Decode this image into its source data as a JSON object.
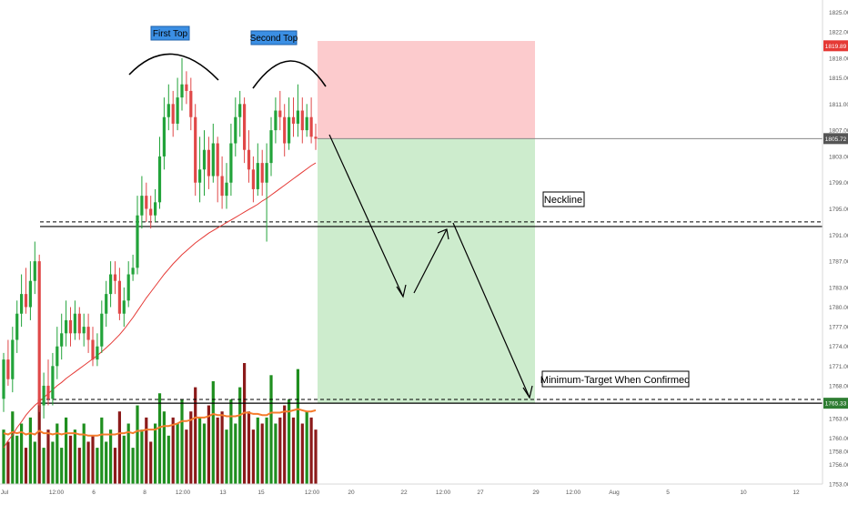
{
  "chart_data": {
    "type": "candlestick",
    "title": "",
    "xlabel": "",
    "ylabel": "",
    "ylim": [
      1751.6,
      1826.6
    ],
    "grid": false,
    "y_ticks": [
      "1825.00",
      "1822.00",
      "1818.00",
      "1815.00",
      "1811.00",
      "1807.00",
      "1803.00",
      "1799.00",
      "1795.00",
      "1791.00",
      "1787.00",
      "1783.00",
      "1780.00",
      "1777.00",
      "1774.00",
      "1771.00",
      "1768.00",
      "1763.00",
      "1760.00",
      "1758.00",
      "1756.00",
      "1753.00"
    ],
    "x_ticks": [
      "Jul",
      "12:00",
      "6",
      "8",
      "12:00",
      "13",
      "15",
      "12:00",
      "20",
      "22",
      "12:00",
      "27",
      "29",
      "12:00",
      "Aug",
      "5",
      "10",
      "12"
    ],
    "price_badges": [
      {
        "label": "1819.89",
        "value": 1819.89,
        "color": "#e53935"
      },
      {
        "label": "1805.72",
        "value": 1805.72,
        "color": "#555555"
      },
      {
        "label": "1765.33",
        "value": 1765.33,
        "color": "#2e7d32"
      }
    ],
    "annotations": {
      "first_top": "First Top",
      "second_top": "Second Top",
      "neckline": "Neckline",
      "target": "Minimum-Target When Confirmed"
    },
    "levels": {
      "neckline_solid": 1792.3,
      "neckline_dashed": 1793.0,
      "target_solid": 1765.33,
      "target_dashed": 1765.9,
      "stop": 1819.89,
      "entry": 1805.72
    },
    "candles": [
      {
        "o": 1766,
        "c": 1772,
        "h": 1773,
        "l": 1764
      },
      {
        "o": 1772,
        "c": 1769,
        "h": 1775,
        "l": 1768
      },
      {
        "o": 1769,
        "c": 1775,
        "h": 1777,
        "l": 1767
      },
      {
        "o": 1775,
        "c": 1779,
        "h": 1781,
        "l": 1773
      },
      {
        "o": 1779,
        "c": 1782,
        "h": 1785,
        "l": 1777
      },
      {
        "o": 1782,
        "c": 1780,
        "h": 1786,
        "l": 1779
      },
      {
        "o": 1780,
        "c": 1784,
        "h": 1787,
        "l": 1778
      },
      {
        "o": 1784,
        "c": 1787,
        "h": 1790,
        "l": 1782
      },
      {
        "o": 1787,
        "c": 1765,
        "h": 1788,
        "l": 1764
      },
      {
        "o": 1765,
        "c": 1768,
        "h": 1770,
        "l": 1763
      },
      {
        "o": 1768,
        "c": 1766,
        "h": 1772,
        "l": 1765
      },
      {
        "o": 1766,
        "c": 1771,
        "h": 1773,
        "l": 1765
      },
      {
        "o": 1771,
        "c": 1774,
        "h": 1777,
        "l": 1769
      },
      {
        "o": 1774,
        "c": 1776,
        "h": 1779,
        "l": 1772
      },
      {
        "o": 1776,
        "c": 1778,
        "h": 1781,
        "l": 1774
      },
      {
        "o": 1778,
        "c": 1776,
        "h": 1780,
        "l": 1774
      },
      {
        "o": 1776,
        "c": 1779,
        "h": 1781,
        "l": 1775
      },
      {
        "o": 1779,
        "c": 1776,
        "h": 1780,
        "l": 1775
      },
      {
        "o": 1776,
        "c": 1777,
        "h": 1779,
        "l": 1774
      },
      {
        "o": 1777,
        "c": 1775,
        "h": 1779,
        "l": 1773
      },
      {
        "o": 1775,
        "c": 1772,
        "h": 1777,
        "l": 1771
      },
      {
        "o": 1772,
        "c": 1774,
        "h": 1776,
        "l": 1771
      },
      {
        "o": 1774,
        "c": 1779,
        "h": 1781,
        "l": 1773
      },
      {
        "o": 1779,
        "c": 1782,
        "h": 1784,
        "l": 1777
      },
      {
        "o": 1782,
        "c": 1785,
        "h": 1787,
        "l": 1780
      },
      {
        "o": 1785,
        "c": 1784,
        "h": 1787,
        "l": 1782
      },
      {
        "o": 1784,
        "c": 1779,
        "h": 1786,
        "l": 1778
      },
      {
        "o": 1779,
        "c": 1781,
        "h": 1783,
        "l": 1777
      },
      {
        "o": 1781,
        "c": 1785,
        "h": 1787,
        "l": 1780
      },
      {
        "o": 1785,
        "c": 1786,
        "h": 1788,
        "l": 1784
      },
      {
        "o": 1786,
        "c": 1794,
        "h": 1797,
        "l": 1785
      },
      {
        "o": 1794,
        "c": 1797,
        "h": 1800,
        "l": 1792
      },
      {
        "o": 1797,
        "c": 1795,
        "h": 1799,
        "l": 1793
      },
      {
        "o": 1795,
        "c": 1794,
        "h": 1797,
        "l": 1792
      },
      {
        "o": 1794,
        "c": 1796,
        "h": 1798,
        "l": 1793
      },
      {
        "o": 1796,
        "c": 1803,
        "h": 1806,
        "l": 1795
      },
      {
        "o": 1803,
        "c": 1809,
        "h": 1812,
        "l": 1801
      },
      {
        "o": 1809,
        "c": 1811,
        "h": 1814,
        "l": 1807
      },
      {
        "o": 1811,
        "c": 1808,
        "h": 1813,
        "l": 1806
      },
      {
        "o": 1808,
        "c": 1812,
        "h": 1815,
        "l": 1807
      },
      {
        "o": 1812,
        "c": 1814,
        "h": 1818,
        "l": 1810
      },
      {
        "o": 1814,
        "c": 1813,
        "h": 1816,
        "l": 1811
      },
      {
        "o": 1813,
        "c": 1809,
        "h": 1815,
        "l": 1807
      },
      {
        "o": 1809,
        "c": 1799,
        "h": 1811,
        "l": 1797
      },
      {
        "o": 1799,
        "c": 1801,
        "h": 1806,
        "l": 1796
      },
      {
        "o": 1801,
        "c": 1804,
        "h": 1807,
        "l": 1797
      },
      {
        "o": 1804,
        "c": 1800,
        "h": 1806,
        "l": 1798
      },
      {
        "o": 1800,
        "c": 1805,
        "h": 1808,
        "l": 1799
      },
      {
        "o": 1805,
        "c": 1800,
        "h": 1806,
        "l": 1796
      },
      {
        "o": 1800,
        "c": 1797,
        "h": 1803,
        "l": 1795
      },
      {
        "o": 1797,
        "c": 1799,
        "h": 1802,
        "l": 1795
      },
      {
        "o": 1799,
        "c": 1805,
        "h": 1808,
        "l": 1797
      },
      {
        "o": 1805,
        "c": 1809,
        "h": 1812,
        "l": 1803
      },
      {
        "o": 1809,
        "c": 1811,
        "h": 1813,
        "l": 1806
      },
      {
        "o": 1811,
        "c": 1804,
        "h": 1812,
        "l": 1802
      },
      {
        "o": 1804,
        "c": 1801,
        "h": 1807,
        "l": 1799
      },
      {
        "o": 1801,
        "c": 1798,
        "h": 1803,
        "l": 1796
      },
      {
        "o": 1798,
        "c": 1802,
        "h": 1805,
        "l": 1797
      },
      {
        "o": 1802,
        "c": 1799,
        "h": 1804,
        "l": 1797
      },
      {
        "o": 1799,
        "c": 1802,
        "h": 1805,
        "l": 1790
      },
      {
        "o": 1802,
        "c": 1807,
        "h": 1809,
        "l": 1800
      },
      {
        "o": 1807,
        "c": 1810,
        "h": 1812,
        "l": 1805
      },
      {
        "o": 1810,
        "c": 1809,
        "h": 1813,
        "l": 1807
      },
      {
        "o": 1809,
        "c": 1805,
        "h": 1811,
        "l": 1803
      },
      {
        "o": 1805,
        "c": 1809,
        "h": 1812,
        "l": 1804
      },
      {
        "o": 1809,
        "c": 1808,
        "h": 1812,
        "l": 1806
      },
      {
        "o": 1808,
        "c": 1810,
        "h": 1814,
        "l": 1806
      },
      {
        "o": 1810,
        "c": 1807,
        "h": 1812,
        "l": 1805
      },
      {
        "o": 1807,
        "c": 1809,
        "h": 1811,
        "l": 1806
      },
      {
        "o": 1809,
        "c": 1806,
        "h": 1812,
        "l": 1805
      },
      {
        "o": 1806,
        "c": 1805.7,
        "h": 1808,
        "l": 1804
      }
    ],
    "moving_average": [
      1758.5,
      1759.6,
      1760.5,
      1761.6,
      1762.5,
      1763.5,
      1764.3,
      1765,
      1765.6,
      1766.2,
      1766.8,
      1767.4,
      1768,
      1768.5,
      1769.1,
      1769.6,
      1770.1,
      1770.6,
      1771.1,
      1771.6,
      1772.1,
      1772.6,
      1773.2,
      1773.8,
      1774.4,
      1775.1,
      1775.8,
      1776.6,
      1777.5,
      1778.4,
      1779.4,
      1780.4,
      1781.4,
      1782.3,
      1783.2,
      1784.1,
      1785,
      1785.8,
      1786.6,
      1787.3,
      1788,
      1788.6,
      1789.2,
      1789.8,
      1790.3,
      1790.8,
      1791.3,
      1791.7,
      1792.1,
      1792.5,
      1792.9,
      1793.3,
      1793.7,
      1794.1,
      1794.5,
      1794.9,
      1795.3,
      1795.7,
      1796.2,
      1796.6,
      1797.1,
      1797.6,
      1798.1,
      1798.6,
      1799.1,
      1799.6,
      1800.1,
      1800.6,
      1801.1,
      1801.6,
      1802
    ],
    "volumes": [
      0.45,
      0.35,
      0.6,
      0.4,
      0.5,
      0.3,
      0.55,
      0.35,
      0.7,
      0.3,
      0.45,
      0.35,
      0.5,
      0.3,
      0.55,
      0.4,
      0.45,
      0.3,
      0.5,
      0.35,
      0.4,
      0.3,
      0.55,
      0.35,
      0.45,
      0.3,
      0.6,
      0.4,
      0.5,
      0.3,
      0.65,
      0.45,
      0.55,
      0.35,
      0.5,
      0.75,
      0.6,
      0.4,
      0.55,
      0.5,
      0.7,
      0.45,
      0.6,
      0.8,
      0.55,
      0.5,
      0.65,
      0.85,
      0.55,
      0.6,
      0.45,
      0.7,
      0.5,
      0.8,
      1.0,
      0.6,
      0.45,
      0.55,
      0.5,
      0.55,
      0.9,
      0.5,
      0.55,
      0.65,
      0.7,
      0.55,
      0.95,
      0.5,
      0.6,
      0.55,
      0.45
    ],
    "volume_ma": [
      0.42,
      0.41,
      0.43,
      0.42,
      0.43,
      0.41,
      0.42,
      0.41,
      0.44,
      0.42,
      0.42,
      0.41,
      0.42,
      0.41,
      0.42,
      0.42,
      0.42,
      0.41,
      0.41,
      0.4,
      0.4,
      0.4,
      0.41,
      0.41,
      0.41,
      0.41,
      0.42,
      0.42,
      0.43,
      0.42,
      0.44,
      0.44,
      0.45,
      0.45,
      0.45,
      0.47,
      0.48,
      0.48,
      0.49,
      0.5,
      0.52,
      0.52,
      0.53,
      0.55,
      0.55,
      0.55,
      0.56,
      0.58,
      0.57,
      0.57,
      0.56,
      0.56,
      0.56,
      0.57,
      0.59,
      0.59,
      0.58,
      0.58,
      0.57,
      0.57,
      0.59,
      0.59,
      0.59,
      0.6,
      0.6,
      0.61,
      0.62,
      0.61,
      0.6,
      0.6,
      0.61
    ]
  }
}
